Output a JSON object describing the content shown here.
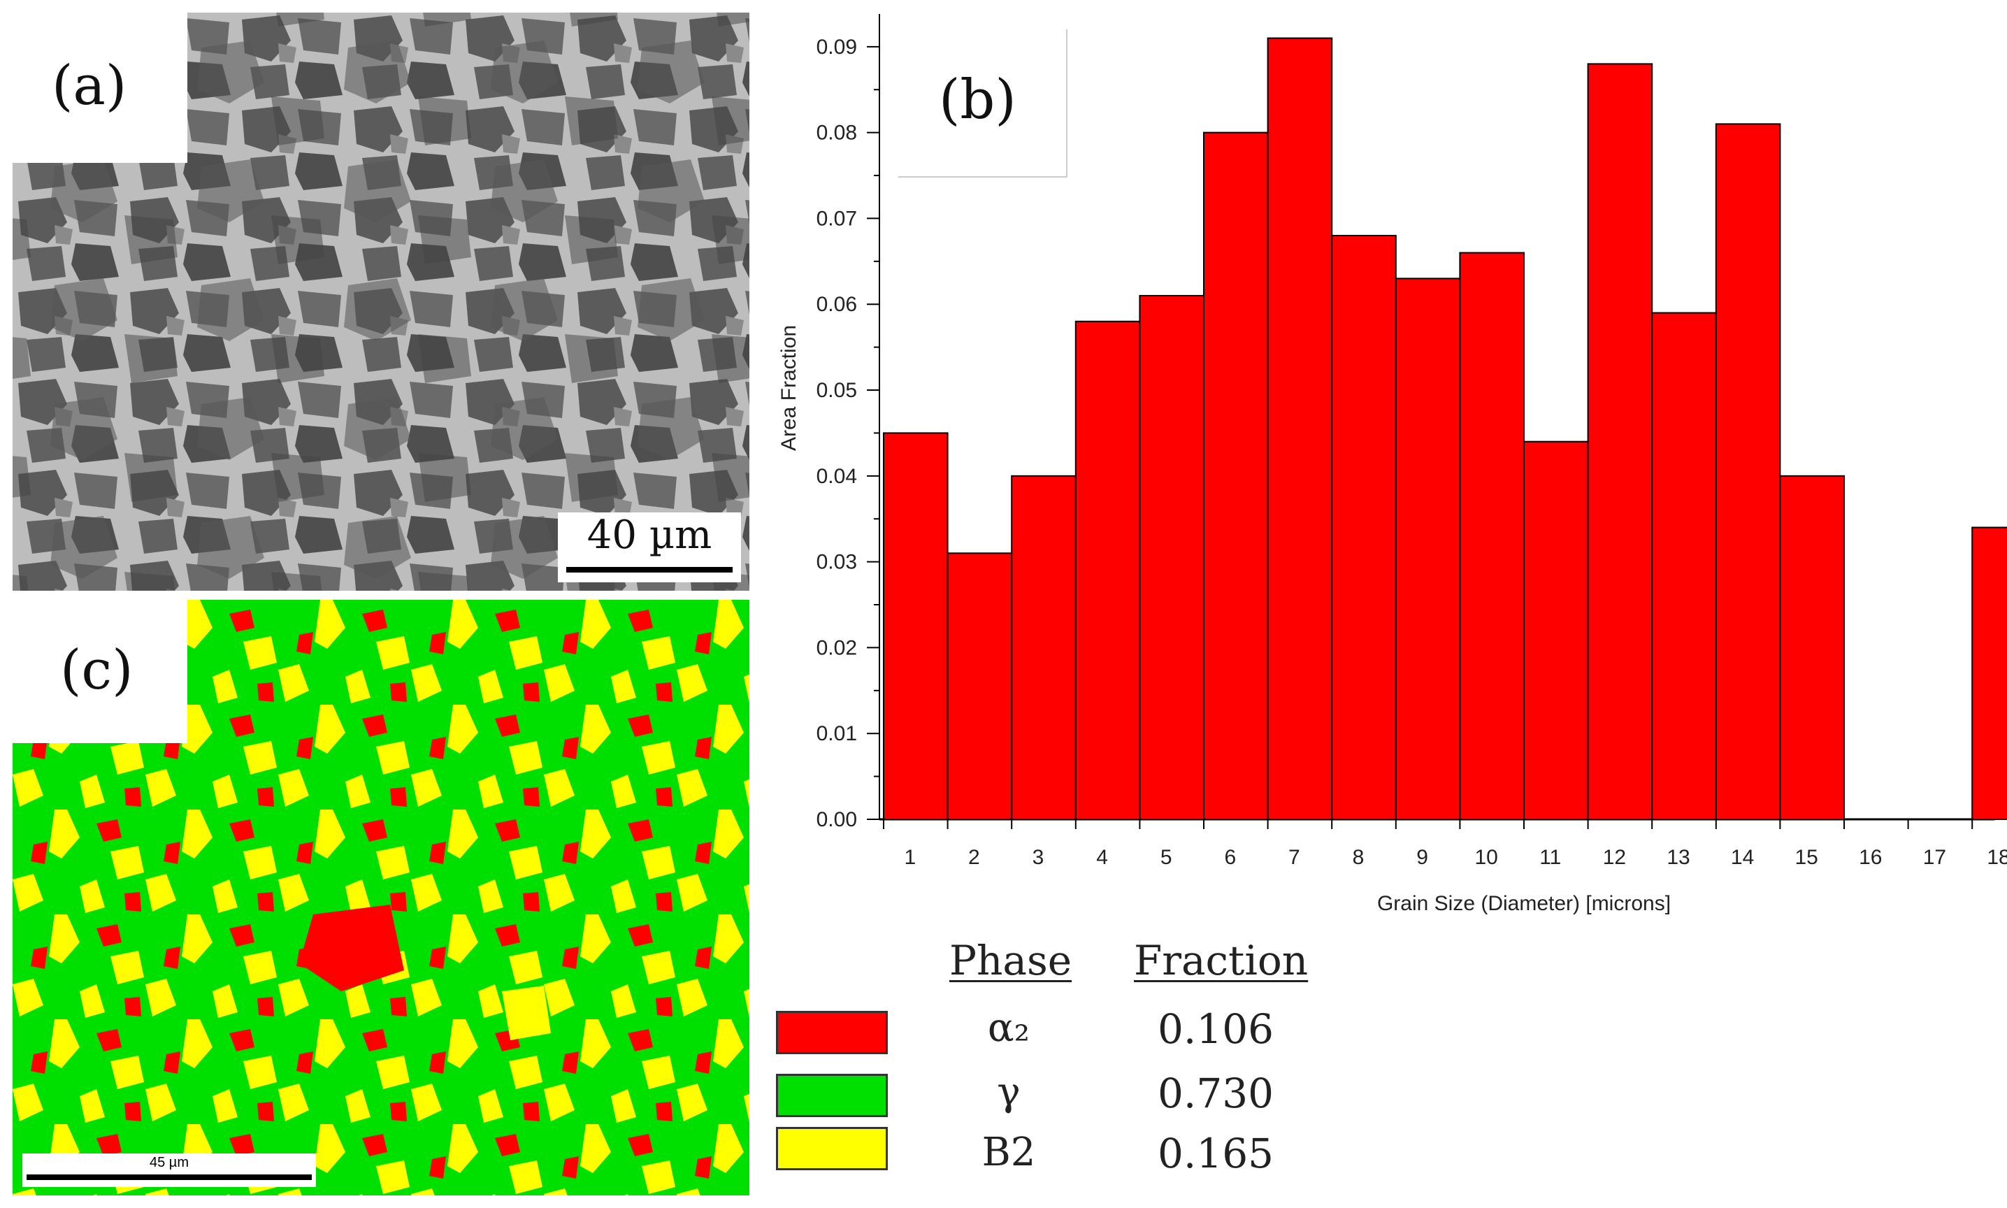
{
  "panels": {
    "a": {
      "label": "(a)",
      "scalebar": "40 µm"
    },
    "b": {
      "label": "(b)"
    },
    "c": {
      "label": "(c)",
      "scalebar": "45 µm"
    }
  },
  "chart_data": {
    "type": "bar",
    "title": "",
    "xlabel": "Grain Size (Diameter) [microns]",
    "ylabel": "Area Fraction",
    "categories": [
      "1",
      "2",
      "3",
      "4",
      "5",
      "6",
      "7",
      "8",
      "9",
      "10",
      "11",
      "12",
      "13",
      "14",
      "15",
      "16",
      "17",
      "18"
    ],
    "values": [
      0.045,
      0.031,
      0.04,
      0.058,
      0.061,
      0.08,
      0.091,
      0.068,
      0.063,
      0.066,
      0.044,
      0.088,
      0.059,
      0.081,
      0.04,
      0.0,
      0.0,
      0.034
    ],
    "ylim": [
      0,
      0.093
    ],
    "yticks": [
      "0.00",
      "0.01",
      "0.02",
      "0.03",
      "0.04",
      "0.05",
      "0.06",
      "0.07",
      "0.08",
      "0.09"
    ],
    "bar_color": "#ff0000"
  },
  "legend": {
    "header_phase": "Phase",
    "header_fraction": "Fraction",
    "items": [
      {
        "phase": "α₂",
        "fraction": "0.106",
        "color": "#ff0000"
      },
      {
        "phase": "γ",
        "fraction": "0.730",
        "color": "#00e000"
      },
      {
        "phase": "B2",
        "fraction": "0.165",
        "color": "#ffff00"
      }
    ]
  }
}
